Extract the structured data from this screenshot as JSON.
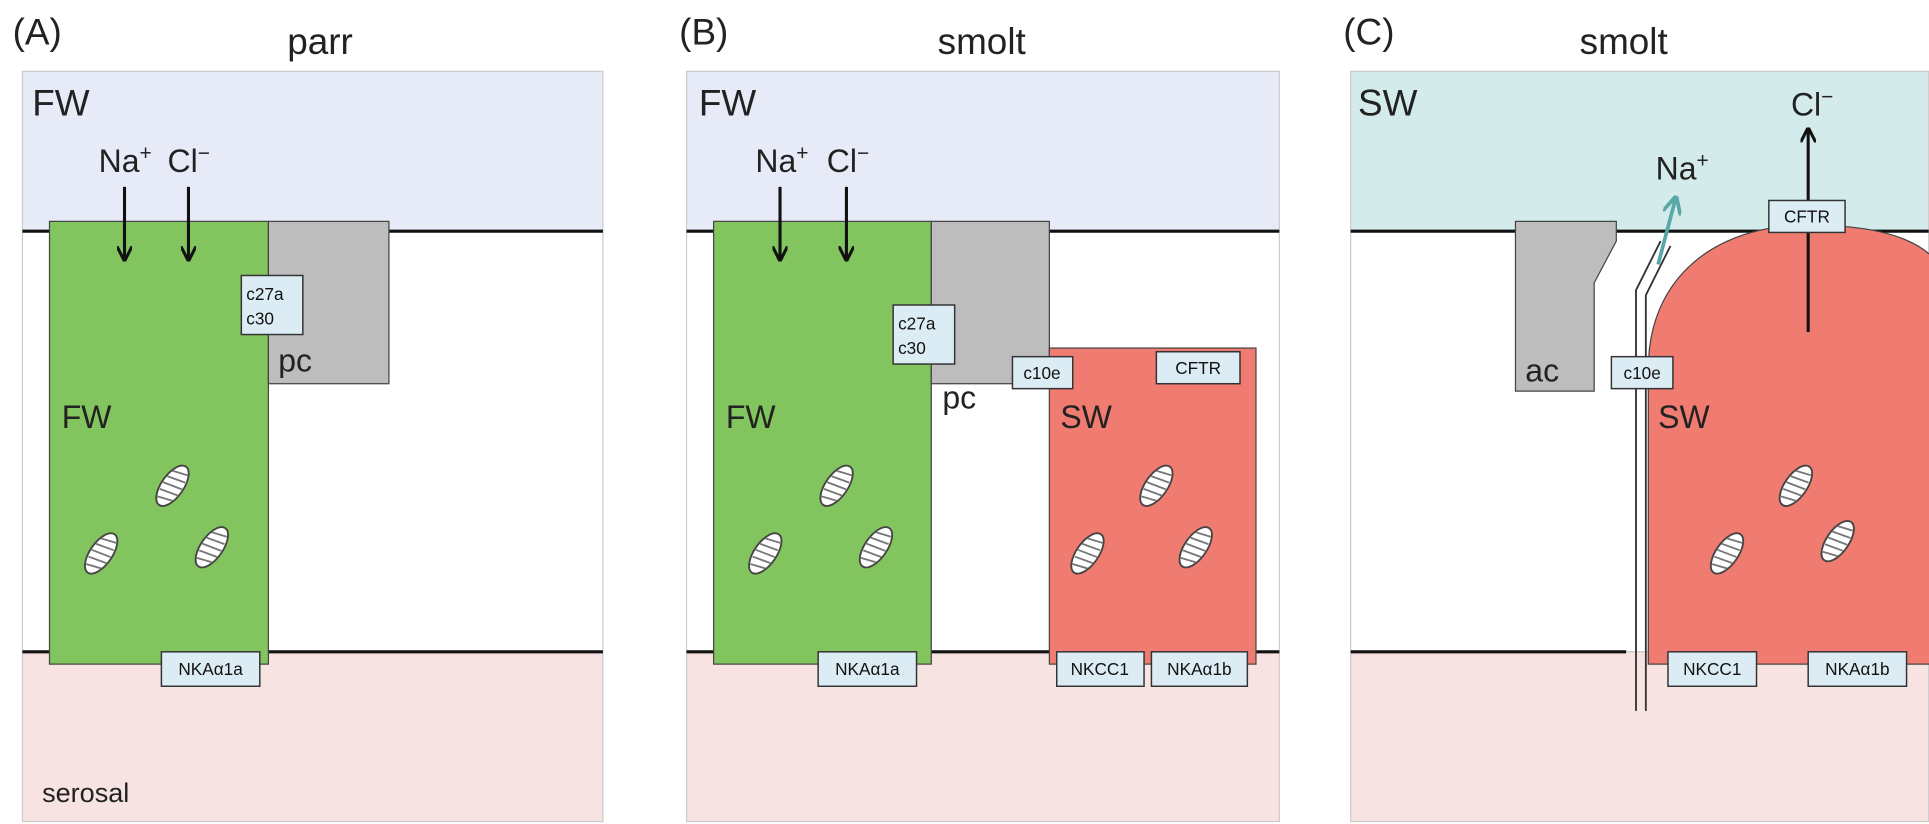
{
  "panels": [
    {
      "label": "(A)",
      "stage": "parr",
      "medium": "FW",
      "ions": [
        {
          "ion": "Na",
          "charge": "+"
        },
        {
          "ion": "Cl",
          "charge": "−"
        }
      ],
      "junction": [
        "c27a",
        "c30"
      ],
      "accessory": "pc",
      "cells": [
        {
          "name": "FW",
          "transporters": [
            "NKAα1a"
          ]
        }
      ],
      "serosal": "serosal"
    },
    {
      "label": "(B)",
      "stage": "smolt",
      "medium": "FW",
      "ions": [
        {
          "ion": "Na",
          "charge": "+"
        },
        {
          "ion": "Cl",
          "charge": "−"
        }
      ],
      "junction": [
        "c27a",
        "c30"
      ],
      "accessory": "pc",
      "cells": [
        {
          "name": "FW",
          "transporters": [
            "NKAα1a"
          ]
        },
        {
          "name": "SW",
          "claudin": "c10e",
          "apical": "CFTR",
          "transporters": [
            "NKCC1",
            "NKAα1b"
          ]
        }
      ]
    },
    {
      "label": "(C)",
      "stage": "smolt",
      "medium": "SW",
      "ions": [
        {
          "ion": "Na",
          "charge": "+"
        },
        {
          "ion": "Cl",
          "charge": "−"
        }
      ],
      "accessory": "ac",
      "cells": [
        {
          "name": "SW",
          "claudin": "c10e",
          "apical": "CFTR",
          "transporters": [
            "NKCC1",
            "NKAα1b"
          ]
        }
      ]
    }
  ]
}
